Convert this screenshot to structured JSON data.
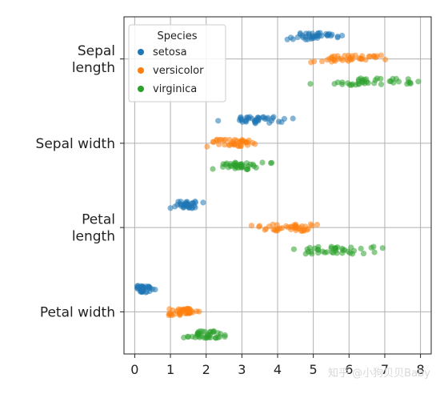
{
  "chart_data": {
    "type": "scatter",
    "subtype": "strip",
    "categories": [
      [
        "Sepal",
        "length"
      ],
      [
        "Sepal width"
      ],
      [
        "Petal",
        "length"
      ],
      [
        "Petal width"
      ]
    ],
    "xlim": [
      -0.3,
      8.3
    ],
    "xticks": [
      "0",
      "1",
      "2",
      "3",
      "4",
      "5",
      "6",
      "7",
      "8"
    ],
    "grid": true,
    "legend": {
      "title": "Species",
      "placement": "top-left"
    },
    "series": [
      {
        "name": "setosa",
        "color": "#1f77b4",
        "values": [
          [
            5.1,
            4.9,
            4.7,
            4.6,
            5.0,
            5.4,
            4.6,
            5.0,
            4.4,
            4.9,
            5.4,
            4.8,
            4.8,
            4.3,
            5.8,
            5.7,
            5.4,
            5.1,
            5.7,
            5.1,
            5.4,
            5.1,
            4.6,
            5.1,
            4.8,
            5.0,
            5.0,
            5.2,
            5.2,
            4.7,
            4.8,
            5.4,
            5.2,
            5.5,
            4.9,
            5.0,
            5.5,
            4.9,
            4.4,
            5.1
          ],
          [
            3.5,
            3.0,
            3.2,
            3.1,
            3.6,
            3.9,
            3.4,
            3.4,
            2.9,
            3.1,
            3.7,
            3.4,
            3.0,
            3.0,
            4.0,
            4.4,
            3.9,
            3.5,
            3.8,
            3.8,
            3.4,
            3.7,
            3.6,
            3.3,
            3.4,
            3.0,
            3.4,
            3.5,
            3.4,
            3.2,
            3.1,
            3.4,
            4.1,
            4.2,
            3.1,
            3.2,
            3.5,
            3.6,
            3.0,
            2.3
          ],
          [
            1.4,
            1.4,
            1.3,
            1.5,
            1.4,
            1.7,
            1.4,
            1.5,
            1.4,
            1.5,
            1.5,
            1.6,
            1.4,
            1.1,
            1.2,
            1.5,
            1.3,
            1.4,
            1.7,
            1.5,
            1.7,
            1.5,
            1.0,
            1.7,
            1.9,
            1.6,
            1.6,
            1.5,
            1.4,
            1.6,
            1.6,
            1.5,
            1.5,
            1.4,
            1.5,
            1.2,
            1.3,
            1.4,
            1.3,
            1.5
          ],
          [
            0.2,
            0.2,
            0.2,
            0.2,
            0.2,
            0.4,
            0.3,
            0.2,
            0.2,
            0.1,
            0.2,
            0.2,
            0.1,
            0.1,
            0.2,
            0.4,
            0.4,
            0.3,
            0.3,
            0.3,
            0.2,
            0.4,
            0.2,
            0.5,
            0.2,
            0.2,
            0.4,
            0.2,
            0.2,
            0.2,
            0.2,
            0.4,
            0.1,
            0.2,
            0.2,
            0.2,
            0.2,
            0.1,
            0.2,
            0.6
          ]
        ]
      },
      {
        "name": "versicolor",
        "color": "#ff7f0e",
        "values": [
          [
            7.0,
            6.4,
            6.9,
            5.5,
            6.5,
            5.7,
            6.3,
            4.9,
            6.6,
            5.2,
            5.0,
            5.9,
            6.0,
            6.1,
            5.6,
            6.7,
            5.6,
            5.8,
            6.2,
            5.6,
            5.9,
            6.1,
            6.3,
            6.1,
            6.4,
            6.6,
            6.8,
            6.7,
            6.0,
            5.7,
            5.5,
            5.5,
            5.8,
            6.0,
            5.4,
            6.0,
            6.7,
            6.3,
            5.6,
            5.5
          ],
          [
            3.2,
            3.2,
            3.1,
            2.3,
            2.8,
            2.8,
            3.3,
            2.4,
            2.9,
            2.7,
            2.0,
            3.0,
            2.2,
            2.9,
            2.9,
            3.1,
            3.0,
            2.7,
            2.2,
            2.5,
            3.2,
            2.8,
            2.5,
            2.8,
            2.9,
            3.0,
            2.8,
            3.0,
            2.9,
            2.6,
            2.4,
            2.4,
            2.7,
            2.7,
            3.0,
            3.4,
            3.1,
            2.3,
            3.0,
            2.5
          ],
          [
            4.7,
            4.5,
            4.9,
            4.0,
            4.6,
            4.5,
            4.7,
            3.3,
            4.6,
            3.9,
            3.5,
            4.2,
            4.0,
            4.7,
            3.6,
            4.4,
            4.5,
            4.1,
            4.5,
            3.9,
            4.8,
            4.0,
            4.9,
            4.7,
            4.3,
            4.4,
            4.8,
            5.0,
            4.5,
            3.5,
            3.8,
            3.7,
            3.9,
            5.1,
            4.5,
            4.5,
            4.7,
            4.4,
            4.1,
            4.0
          ],
          [
            1.4,
            1.5,
            1.5,
            1.3,
            1.5,
            1.3,
            1.6,
            1.0,
            1.3,
            1.4,
            1.0,
            1.5,
            1.0,
            1.4,
            1.3,
            1.4,
            1.5,
            1.0,
            1.5,
            1.1,
            1.8,
            1.3,
            1.5,
            1.2,
            1.3,
            1.4,
            1.4,
            1.7,
            1.5,
            1.0,
            1.1,
            1.0,
            1.2,
            1.6,
            1.5,
            1.6,
            1.5,
            1.3,
            1.3,
            1.3
          ]
        ]
      },
      {
        "name": "virginica",
        "color": "#2ca02c",
        "values": [
          [
            6.3,
            5.8,
            7.1,
            6.3,
            6.5,
            7.6,
            4.9,
            7.3,
            6.7,
            7.2,
            6.5,
            6.4,
            6.8,
            5.7,
            5.8,
            6.4,
            6.5,
            7.7,
            7.7,
            6.0,
            6.9,
            5.6,
            7.7,
            6.3,
            6.7,
            7.2,
            6.2,
            6.1,
            6.4,
            7.2,
            7.4,
            7.9,
            6.4,
            6.3,
            6.1,
            7.7,
            6.3,
            6.4,
            6.0,
            6.9
          ],
          [
            3.3,
            2.7,
            3.0,
            2.9,
            3.0,
            3.0,
            2.5,
            2.9,
            2.5,
            3.6,
            3.2,
            2.7,
            3.0,
            2.5,
            2.8,
            3.2,
            3.0,
            3.8,
            2.6,
            2.2,
            3.2,
            2.8,
            2.8,
            2.7,
            3.3,
            3.2,
            2.8,
            3.0,
            2.8,
            3.0,
            2.8,
            3.8,
            2.8,
            2.8,
            2.6,
            3.0,
            3.4,
            3.1,
            3.0,
            3.1
          ],
          [
            6.0,
            5.1,
            5.9,
            5.6,
            5.8,
            6.6,
            4.5,
            6.3,
            5.8,
            6.1,
            5.1,
            5.3,
            5.5,
            5.0,
            5.1,
            5.3,
            5.5,
            6.7,
            6.9,
            5.0,
            5.7,
            4.9,
            6.7,
            4.9,
            5.7,
            6.0,
            4.8,
            4.9,
            5.6,
            5.8,
            6.1,
            6.4,
            5.6,
            5.1,
            5.6,
            6.1,
            5.6,
            5.5,
            4.8,
            5.4
          ],
          [
            2.5,
            1.9,
            2.1,
            1.8,
            2.2,
            2.1,
            1.7,
            1.8,
            1.8,
            2.5,
            2.0,
            1.9,
            2.1,
            2.0,
            2.4,
            2.3,
            1.8,
            2.2,
            2.3,
            1.5,
            2.3,
            2.0,
            2.0,
            1.8,
            2.1,
            1.8,
            1.8,
            1.8,
            2.1,
            1.6,
            1.9,
            2.0,
            2.2,
            1.5,
            1.4,
            2.3,
            2.4,
            1.8,
            1.8,
            2.1
          ]
        ]
      }
    ]
  },
  "watermark": "知乎 @小狗贝贝Baby"
}
